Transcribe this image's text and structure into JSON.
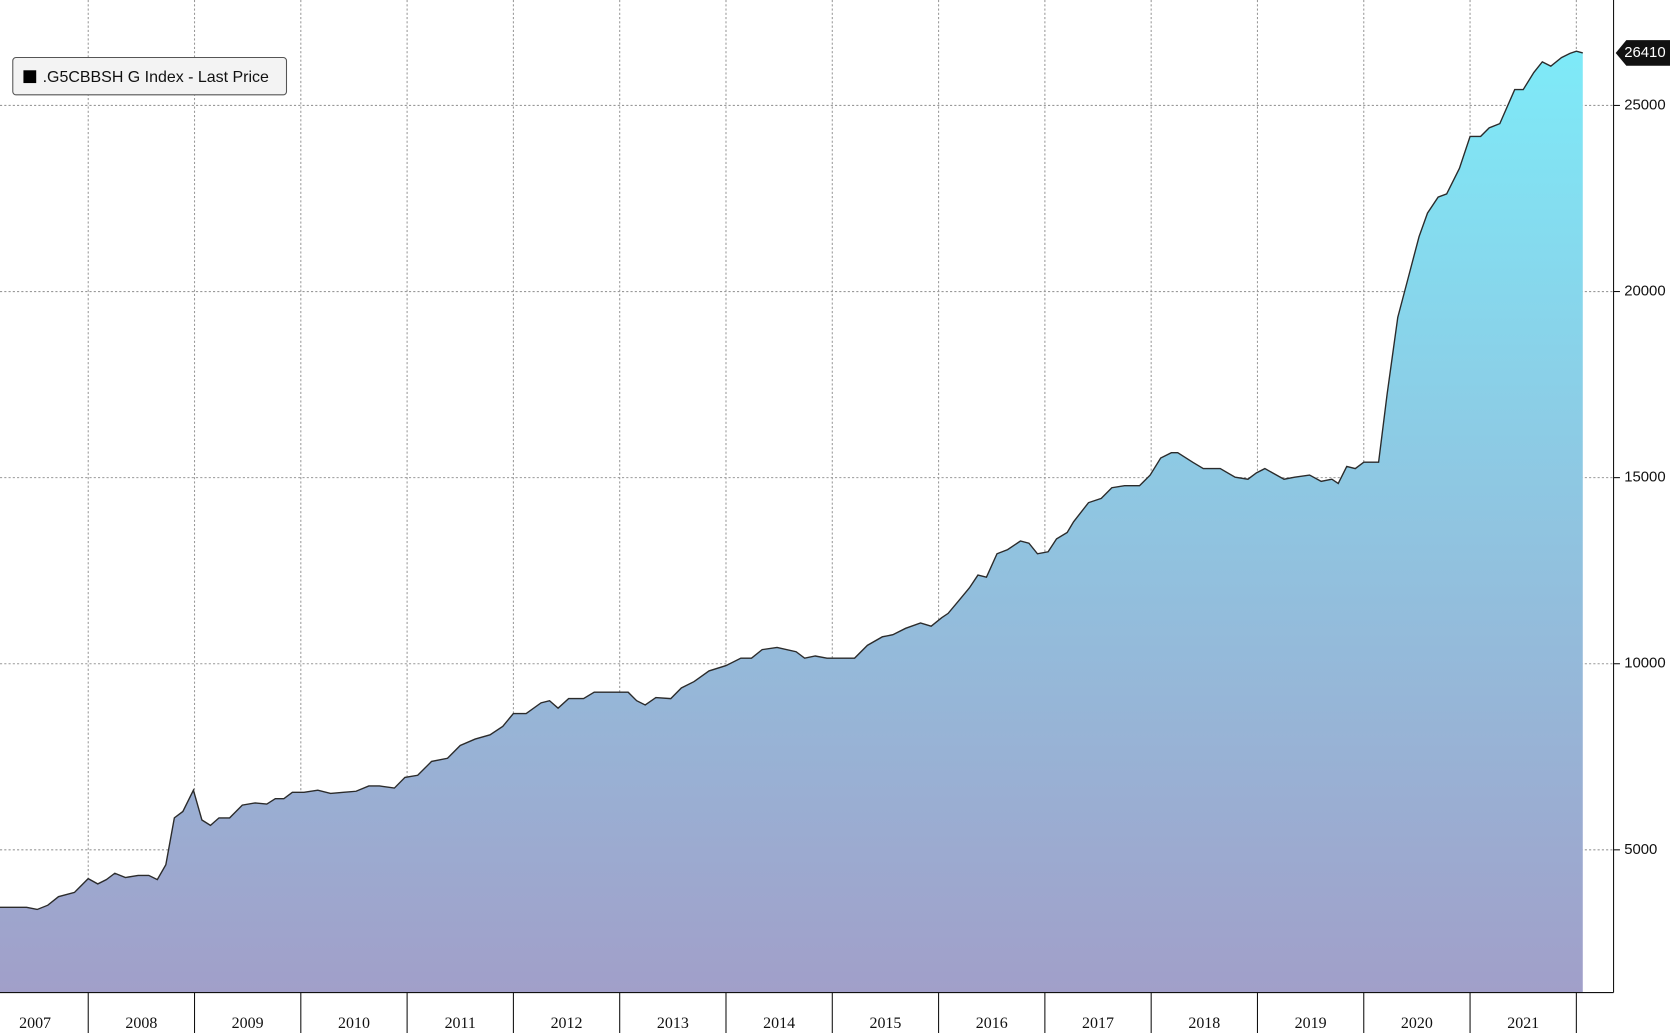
{
  "chart_data": {
    "type": "area",
    "series": [
      {
        "name": ".G5CBBSH G Index - Last Price",
        "color": "#000000",
        "line_color": "#2b2b2b",
        "fill_gradient": [
          "#7eeaf8",
          "#a19fc9"
        ],
        "x": [
          2007.17,
          2007.42,
          2007.52,
          2007.62,
          2007.72,
          2007.87,
          2008.0,
          2008.09,
          2008.17,
          2008.25,
          2008.35,
          2008.47,
          2008.57,
          2008.65,
          2008.73,
          2008.81,
          2008.89,
          2008.99,
          2009.07,
          2009.15,
          2009.23,
          2009.33,
          2009.45,
          2009.57,
          2009.68,
          2009.76,
          2009.84,
          2009.92,
          2010.03,
          2010.16,
          2010.28,
          2010.4,
          2010.52,
          2010.64,
          2010.74,
          2010.88,
          2010.98,
          2011.1,
          2011.23,
          2011.38,
          2011.5,
          2011.64,
          2011.78,
          2011.9,
          2012.0,
          2012.12,
          2012.26,
          2012.34,
          2012.42,
          2012.52,
          2012.66,
          2012.76,
          2012.98,
          2013.08,
          2013.16,
          2013.24,
          2013.34,
          2013.48,
          2013.58,
          2013.7,
          2013.84,
          2014.0,
          2014.14,
          2014.24,
          2014.34,
          2014.48,
          2014.66,
          2014.74,
          2014.84,
          2014.95,
          2015.09,
          2015.21,
          2015.33,
          2015.47,
          2015.57,
          2015.69,
          2015.83,
          2015.93,
          2016.03,
          2016.09,
          2016.19,
          2016.29,
          2016.37,
          2016.45,
          2016.55,
          2016.65,
          2016.77,
          2016.85,
          2016.93,
          2017.03,
          2017.11,
          2017.21,
          2017.27,
          2017.41,
          2017.53,
          2017.63,
          2017.75,
          2017.89,
          2017.99,
          2018.09,
          2018.19,
          2018.25,
          2018.39,
          2018.49,
          2018.65,
          2018.79,
          2018.91,
          2018.99,
          2019.07,
          2019.25,
          2019.35,
          2019.49,
          2019.6,
          2019.7,
          2019.76,
          2019.84,
          2019.92,
          2020.0,
          2020.14,
          2020.22,
          2020.32,
          2020.42,
          2020.52,
          2020.6,
          2020.7,
          2020.78,
          2020.9,
          2021.0,
          2021.1,
          2021.18,
          2021.28,
          2021.42,
          2021.5,
          2021.6,
          2021.68,
          2021.76,
          2021.86,
          2021.94,
          2022.0,
          2022.06
        ],
        "values": [
          3455,
          3455,
          3398,
          3512,
          3741,
          3856,
          4228,
          4084,
          4199,
          4371,
          4256,
          4313,
          4313,
          4199,
          4600,
          5858,
          6030,
          6602,
          5801,
          5658,
          5858,
          5858,
          6202,
          6259,
          6230,
          6373,
          6373,
          6545,
          6545,
          6602,
          6516,
          6545,
          6573,
          6717,
          6717,
          6659,
          6945,
          7003,
          7375,
          7460,
          7804,
          7975,
          8090,
          8319,
          8662,
          8662,
          8948,
          9005,
          8805,
          9063,
          9063,
          9234,
          9234,
          9234,
          9005,
          8891,
          9091,
          9063,
          9349,
          9520,
          9806,
          9949,
          10150,
          10150,
          10379,
          10436,
          10322,
          10150,
          10207,
          10150,
          10150,
          10150,
          10493,
          10722,
          10779,
          10951,
          11094,
          11008,
          11237,
          11351,
          11695,
          12038,
          12381,
          12324,
          12953,
          13067,
          13297,
          13239,
          12953,
          13010,
          13354,
          13526,
          13812,
          14327,
          14441,
          14727,
          14784,
          14784,
          15070,
          15528,
          15671,
          15671,
          15414,
          15242,
          15242,
          15013,
          14956,
          15128,
          15242,
          14956,
          15013,
          15070,
          14899,
          14956,
          14842,
          15300,
          15242,
          15414,
          15414,
          17245,
          19305,
          20392,
          21479,
          22109,
          22538,
          22624,
          23310,
          24169,
          24169,
          24398,
          24512,
          25428,
          25428,
          25885,
          26171,
          26057,
          26286,
          26400,
          26457,
          26410
        ]
      }
    ],
    "year_labels": [
      "2007",
      "2008",
      "2009",
      "2010",
      "2011",
      "2012",
      "2013",
      "2014",
      "2015",
      "2016",
      "2017",
      "2018",
      "2019",
      "2020",
      "2021"
    ],
    "xlim": [
      2007.17,
      2022.35
    ],
    "xticks": [
      2008,
      2009,
      2010,
      2011,
      2012,
      2013,
      2014,
      2015,
      2016,
      2017,
      2018,
      2019,
      2020,
      2021,
      2022
    ],
    "ylim": [
      1166,
      27833
    ],
    "yticks": [
      5000,
      10000,
      15000,
      20000,
      25000
    ],
    "grid": true,
    "legend": "upper left"
  }
}
